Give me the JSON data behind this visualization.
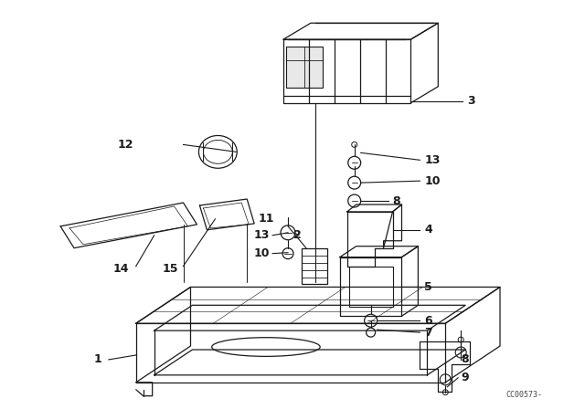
{
  "bg_color": "#ffffff",
  "line_color": "#1a1a1a",
  "fig_width": 6.4,
  "fig_height": 4.48,
  "dpi": 100,
  "watermark": "CC00573-",
  "lw": 0.9
}
